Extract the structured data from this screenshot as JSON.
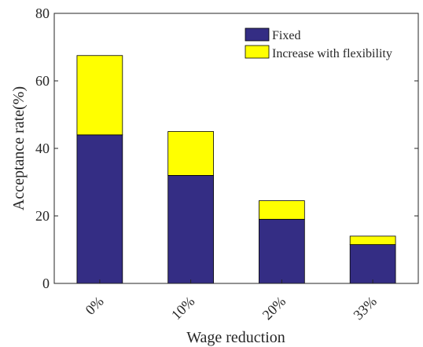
{
  "chart_data": {
    "type": "bar",
    "stacked": true,
    "categories": [
      "0%",
      "10%",
      "20%",
      "33%"
    ],
    "series": [
      {
        "name": "Fixed",
        "values": [
          44,
          32,
          19,
          11.5
        ],
        "color": "#342D84"
      },
      {
        "name": "Increase with flexibility",
        "values": [
          23.5,
          13,
          5.5,
          2.5
        ],
        "color": "#FFFF00"
      }
    ],
    "xlabel": "Wage reduction",
    "ylabel": "Acceptance rate(%)",
    "ylim": [
      0,
      80
    ],
    "yticks": [
      "0",
      "20",
      "40",
      "60",
      "80"
    ],
    "grid": false,
    "legend_position": "top-right"
  }
}
